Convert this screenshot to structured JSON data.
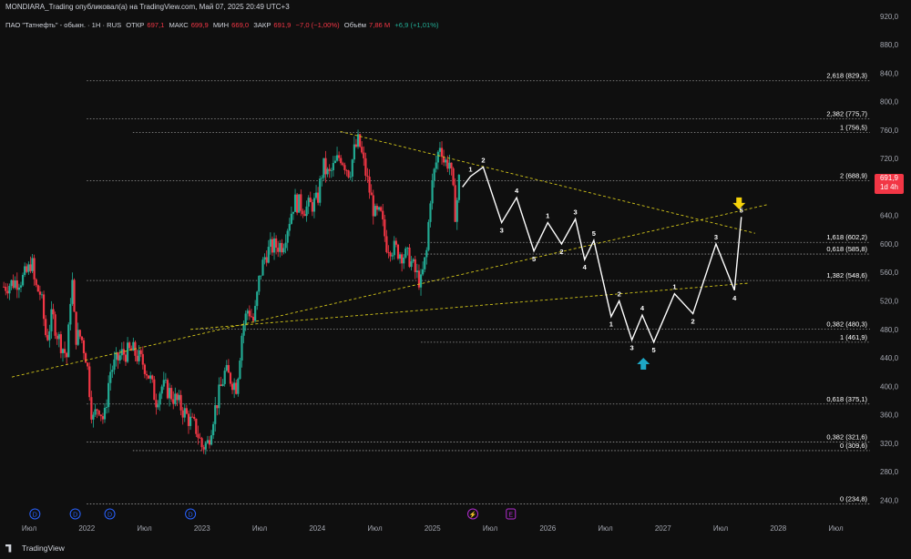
{
  "header": {
    "publish_line": "MONDIARA_Trading опубликовал(а) на TradingView.com, Май 07, 2025 20:49 UTC+3"
  },
  "symbol_bar": {
    "name": "ПАО \"Татнефть\" - обыкн. · 1Н · RUS",
    "open_label": "ОТКР",
    "open": "697,1",
    "high_label": "МАКС",
    "high": "699,9",
    "low_label": "МИН",
    "low": "669,0",
    "close_label": "ЗАКР",
    "close": "691,9",
    "change": "−7,0 (−1,00%)",
    "volume_label": "Объём",
    "volume": "7,86 M",
    "volume_change": "+6,9 (+1,01%)"
  },
  "last_price_badge": {
    "price": "691,9",
    "countdown": "1d 4h"
  },
  "footer": {
    "brand": "TradingView"
  },
  "colors": {
    "background": "#0f0f0f",
    "up_candle": "#22ab94",
    "down_candle": "#f23645",
    "projection": "#ffffff",
    "trendline": "#d4c71a",
    "fib_line": "#9a9a9a",
    "arrow_down": "#f5d20a",
    "arrow_up": "#1ea7c5",
    "event_d": "#2962ff",
    "event_e": "#b22ccf"
  },
  "chart_data": {
    "type": "candlestick",
    "y_axis": {
      "min": 220,
      "max": 930,
      "ticks": [
        "920,0",
        "880,0",
        "840,0",
        "800,0",
        "760,0",
        "720,0",
        "680,0",
        "640,0",
        "600,0",
        "560,0",
        "520,0",
        "480,0",
        "440,0",
        "400,0",
        "360,0",
        "320,0",
        "280,0",
        "240,0"
      ]
    },
    "x_axis": {
      "labels": [
        {
          "t": 0.0,
          "text": "Июл"
        },
        {
          "t": 0.5,
          "text": "2022"
        },
        {
          "t": 1.0,
          "text": "Июл"
        },
        {
          "t": 1.5,
          "text": "2023"
        },
        {
          "t": 2.0,
          "text": "Июл"
        },
        {
          "t": 2.5,
          "text": "2024"
        },
        {
          "t": 3.0,
          "text": "Июл"
        },
        {
          "t": 3.5,
          "text": "2025"
        },
        {
          "t": 4.0,
          "text": "Июл"
        },
        {
          "t": 4.5,
          "text": "2026"
        },
        {
          "t": 5.0,
          "text": "Июл"
        },
        {
          "t": 5.5,
          "text": "2027"
        },
        {
          "t": 6.0,
          "text": "Июл"
        },
        {
          "t": 6.5,
          "text": "2028"
        },
        {
          "t": 7.0,
          "text": "Июл"
        }
      ]
    },
    "fib_levels": [
      {
        "label": "2,618 (829,3)",
        "value": 829.3,
        "t_start": 0.5
      },
      {
        "label": "2,382 (775,7)",
        "value": 775.7,
        "t_start": 0.5
      },
      {
        "label": "1 (756,5)",
        "value": 756.5,
        "t_start": 0.9
      },
      {
        "label": "2 (688,9)",
        "value": 688.9,
        "t_start": 0.5
      },
      {
        "label": "1,618 (602,2)",
        "value": 602.2,
        "t_start": 3.4
      },
      {
        "label": "0,618 (585,8)",
        "value": 585.8,
        "t_start": 3.4
      },
      {
        "label": "1,382 (548,6)",
        "value": 548.6,
        "t_start": 0.5
      },
      {
        "label": "0,382 (480,3)",
        "value": 480.3,
        "t_start": 1.45
      },
      {
        "label": "1 (461,9)",
        "value": 461.9,
        "t_start": 3.4
      },
      {
        "label": "0,618 (375,1)",
        "value": 375.1,
        "t_start": 0.5
      },
      {
        "label": "0,382 (321,6)",
        "value": 321.6,
        "t_start": 0.5
      },
      {
        "label": "0 (309,6)",
        "value": 309.6,
        "t_start": 0.9
      },
      {
        "label": "0 (234,8)",
        "value": 234.8,
        "t_start": 0.5
      }
    ],
    "trendlines": [
      {
        "t1": -0.15,
        "v1": 413,
        "t2": 6.4,
        "v2": 655
      },
      {
        "t1": 1.4,
        "v1": 480,
        "t2": 6.25,
        "v2": 545
      },
      {
        "t1": 2.7,
        "v1": 758,
        "t2": 6.3,
        "v2": 615
      }
    ],
    "projection_path": [
      {
        "t": 3.76,
        "v": 680,
        "label": ""
      },
      {
        "t": 3.83,
        "v": 695,
        "label": "1"
      },
      {
        "t": 3.94,
        "v": 708,
        "label": "2"
      },
      {
        "t": 4.1,
        "v": 630,
        "label": "3"
      },
      {
        "t": 4.23,
        "v": 665,
        "label": "4"
      },
      {
        "t": 4.38,
        "v": 590,
        "label": "5"
      },
      {
        "t": 4.5,
        "v": 630,
        "label": "1"
      },
      {
        "t": 4.62,
        "v": 600,
        "label": "2"
      },
      {
        "t": 4.74,
        "v": 635,
        "label": "3"
      },
      {
        "t": 4.82,
        "v": 578,
        "label": "4"
      },
      {
        "t": 4.9,
        "v": 605,
        "label": "5"
      },
      {
        "t": 5.05,
        "v": 498,
        "label": "1"
      },
      {
        "t": 5.12,
        "v": 520,
        "label": "2"
      },
      {
        "t": 5.23,
        "v": 465,
        "label": "3"
      },
      {
        "t": 5.32,
        "v": 500,
        "label": "4"
      },
      {
        "t": 5.42,
        "v": 462,
        "label": "5"
      },
      {
        "t": 5.6,
        "v": 530,
        "label": "1"
      },
      {
        "t": 5.76,
        "v": 502,
        "label": "2"
      },
      {
        "t": 5.96,
        "v": 600,
        "label": "3"
      },
      {
        "t": 6.12,
        "v": 535,
        "label": "4"
      },
      {
        "t": 6.18,
        "v": 638,
        "label": "5"
      }
    ],
    "arrows": [
      {
        "t": 6.16,
        "v": 650,
        "direction": "down"
      },
      {
        "t": 5.33,
        "v": 440,
        "direction": "up"
      }
    ],
    "event_markers": [
      {
        "t": 0.05,
        "label": "D"
      },
      {
        "t": 0.4,
        "label": "D"
      },
      {
        "t": 0.7,
        "label": "D"
      },
      {
        "t": 1.4,
        "label": "D"
      },
      {
        "t": 3.85,
        "label": "⚡"
      },
      {
        "t": 4.18,
        "label": "E"
      }
    ],
    "price_path": [
      [
        -0.22,
        540
      ],
      [
        -0.05,
        552
      ],
      [
        0.0,
        565
      ],
      [
        0.02,
        580
      ],
      [
        0.05,
        540
      ],
      [
        0.1,
        530
      ],
      [
        0.15,
        465
      ],
      [
        0.2,
        500
      ],
      [
        0.25,
        470
      ],
      [
        0.33,
        440
      ],
      [
        0.37,
        560
      ],
      [
        0.4,
        470
      ],
      [
        0.45,
        470
      ],
      [
        0.5,
        437
      ],
      [
        0.55,
        350
      ],
      [
        0.6,
        375
      ],
      [
        0.65,
        350
      ],
      [
        0.7,
        420
      ],
      [
        0.8,
        445
      ],
      [
        0.9,
        450
      ],
      [
        1.0,
        430
      ],
      [
        1.05,
        410
      ],
      [
        1.1,
        380
      ],
      [
        1.15,
        400
      ],
      [
        1.2,
        395
      ],
      [
        1.3,
        375
      ],
      [
        1.4,
        350
      ],
      [
        1.45,
        340
      ],
      [
        1.5,
        315
      ],
      [
        1.55,
        320
      ],
      [
        1.6,
        360
      ],
      [
        1.7,
        420
      ],
      [
        1.8,
        400
      ],
      [
        1.85,
        480
      ],
      [
        1.9,
        510
      ],
      [
        1.95,
        490
      ],
      [
        2.0,
        555
      ],
      [
        2.05,
        585
      ],
      [
        2.1,
        595
      ],
      [
        2.2,
        600
      ],
      [
        2.3,
        660
      ],
      [
        2.4,
        650
      ],
      [
        2.5,
        660
      ],
      [
        2.55,
        710
      ],
      [
        2.6,
        695
      ],
      [
        2.7,
        725
      ],
      [
        2.78,
        700
      ],
      [
        2.82,
        730
      ],
      [
        2.86,
        745
      ],
      [
        2.9,
        715
      ],
      [
        3.0,
        640
      ],
      [
        3.05,
        640
      ],
      [
        3.1,
        600
      ],
      [
        3.2,
        590
      ],
      [
        3.3,
        580
      ],
      [
        3.35,
        560
      ],
      [
        3.4,
        545
      ],
      [
        3.45,
        590
      ],
      [
        3.48,
        665
      ],
      [
        3.52,
        705
      ],
      [
        3.57,
        745
      ],
      [
        3.6,
        715
      ],
      [
        3.65,
        715
      ],
      [
        3.7,
        640
      ],
      [
        3.73,
        690
      ]
    ]
  }
}
